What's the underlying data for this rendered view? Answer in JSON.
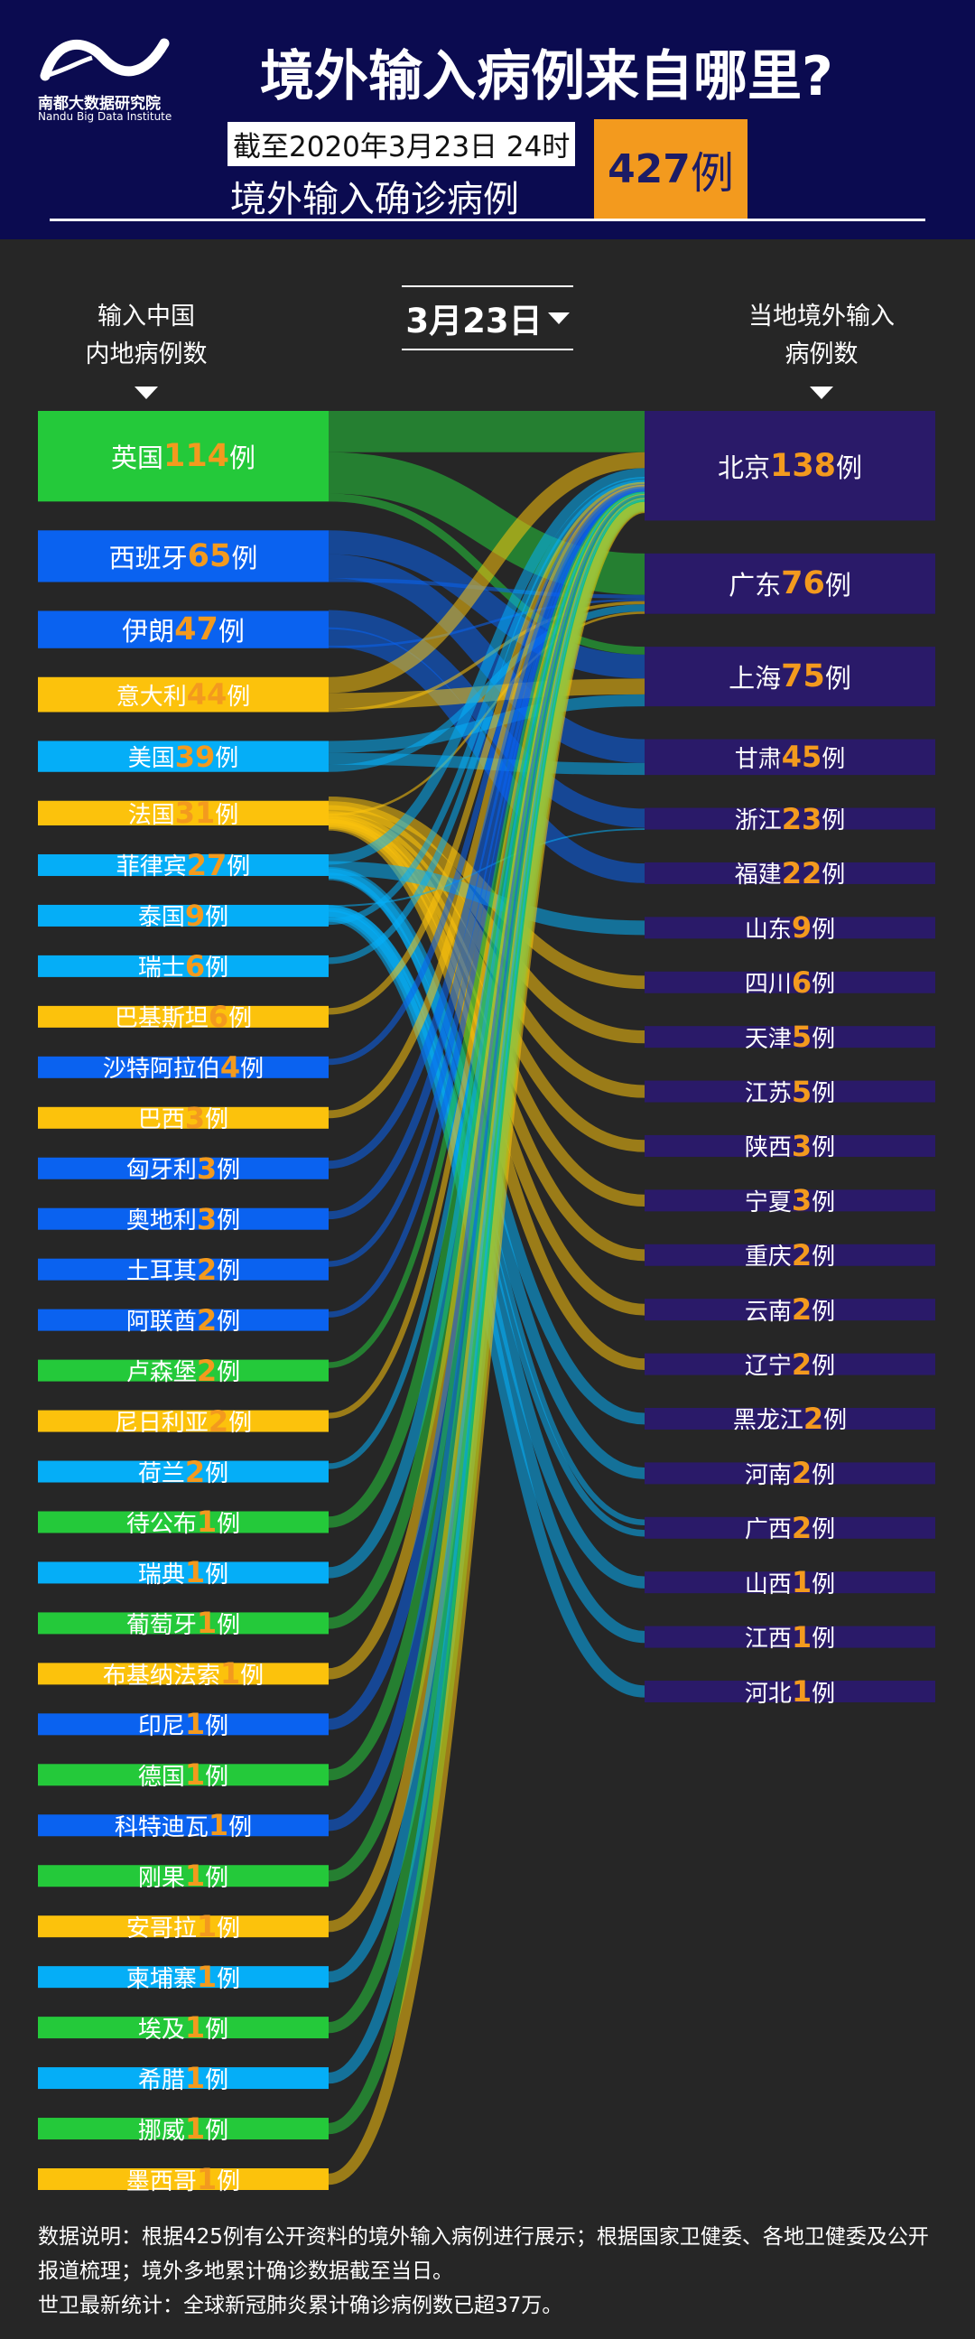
{
  "header": {
    "brand_cn": "南都大数据研究院",
    "brand_en": "Nandu Big Data Institute",
    "title": "境外输入病例来自哪里?",
    "date_line": "截至2020年3月23日 24时",
    "subtitle": "境外输入确诊病例",
    "total_count": "427",
    "total_unit": "例"
  },
  "columns": {
    "left_title_1": "输入中国",
    "left_title_2": "内地病例数",
    "right_title_1": "当地境外输入",
    "right_title_2": "病例数",
    "date_select": "3月23日"
  },
  "colors": {
    "green": "#24c93a",
    "blue": "#0a62f0",
    "cyan": "#05aef7",
    "yellow": "#fcc20c",
    "purple": "#2a1a69",
    "orange": "#f39a1e"
  },
  "chart_data": {
    "type": "sankey",
    "unit": "例",
    "sources": [
      {
        "name": "英国",
        "value": 114,
        "color": "green"
      },
      {
        "name": "西班牙",
        "value": 65,
        "color": "blue"
      },
      {
        "name": "伊朗",
        "value": 47,
        "color": "blue"
      },
      {
        "name": "意大利",
        "value": 44,
        "color": "yellow"
      },
      {
        "name": "美国",
        "value": 39,
        "color": "cyan"
      },
      {
        "name": "法国",
        "value": 31,
        "color": "yellow"
      },
      {
        "name": "菲律宾",
        "value": 27,
        "color": "cyan"
      },
      {
        "name": "泰国",
        "value": 9,
        "color": "cyan"
      },
      {
        "name": "瑞士",
        "value": 6,
        "color": "cyan"
      },
      {
        "name": "巴基斯坦",
        "value": 6,
        "color": "yellow"
      },
      {
        "name": "沙特阿拉伯",
        "value": 4,
        "color": "blue"
      },
      {
        "name": "巴西",
        "value": 3,
        "color": "yellow"
      },
      {
        "name": "匈牙利",
        "value": 3,
        "color": "blue"
      },
      {
        "name": "奥地利",
        "value": 3,
        "color": "blue"
      },
      {
        "name": "土耳其",
        "value": 2,
        "color": "blue"
      },
      {
        "name": "阿联酋",
        "value": 2,
        "color": "blue"
      },
      {
        "name": "卢森堡",
        "value": 2,
        "color": "green"
      },
      {
        "name": "尼日利亚",
        "value": 2,
        "color": "yellow"
      },
      {
        "name": "荷兰",
        "value": 2,
        "color": "cyan"
      },
      {
        "name": "待公布",
        "value": 1,
        "color": "green"
      },
      {
        "name": "瑞典",
        "value": 1,
        "color": "cyan"
      },
      {
        "name": "葡萄牙",
        "value": 1,
        "color": "green"
      },
      {
        "name": "布基纳法索",
        "value": 1,
        "color": "yellow"
      },
      {
        "name": "印尼",
        "value": 1,
        "color": "blue"
      },
      {
        "name": "德国",
        "value": 1,
        "color": "green"
      },
      {
        "name": "科特迪瓦",
        "value": 1,
        "color": "blue"
      },
      {
        "name": "刚果",
        "value": 1,
        "color": "green"
      },
      {
        "name": "安哥拉",
        "value": 1,
        "color": "yellow"
      },
      {
        "name": "柬埔寨",
        "value": 1,
        "color": "cyan"
      },
      {
        "name": "埃及",
        "value": 1,
        "color": "green"
      },
      {
        "name": "希腊",
        "value": 1,
        "color": "cyan"
      },
      {
        "name": "挪威",
        "value": 1,
        "color": "green"
      },
      {
        "name": "墨西哥",
        "value": 1,
        "color": "yellow"
      }
    ],
    "targets": [
      {
        "name": "北京",
        "value": 138
      },
      {
        "name": "广东",
        "value": 76
      },
      {
        "name": "上海",
        "value": 75
      },
      {
        "name": "甘肃",
        "value": 45
      },
      {
        "name": "浙江",
        "value": 23
      },
      {
        "name": "福建",
        "value": 22
      },
      {
        "name": "山东",
        "value": 9
      },
      {
        "name": "四川",
        "value": 6
      },
      {
        "name": "天津",
        "value": 5
      },
      {
        "name": "江苏",
        "value": 5
      },
      {
        "name": "陕西",
        "value": 3
      },
      {
        "name": "宁夏",
        "value": 3
      },
      {
        "name": "重庆",
        "value": 2
      },
      {
        "name": "云南",
        "value": 2
      },
      {
        "name": "辽宁",
        "value": 2
      },
      {
        "name": "黑龙江",
        "value": 2
      },
      {
        "name": "河南",
        "value": 2
      },
      {
        "name": "广西",
        "value": 2
      },
      {
        "name": "山西",
        "value": 1
      },
      {
        "name": "江西",
        "value": 1
      },
      {
        "name": "河北",
        "value": 1
      }
    ]
  },
  "notes": {
    "line1": "数据说明：根据425例有公开资料的境外输入病例进行展示；根据国家卫健委、各地卫健委及公开报道梳理；境外多地累计确诊数据截至当日。",
    "line2": "世卫最新统计：全球新冠肺炎累计确诊病例数已超37万。"
  }
}
